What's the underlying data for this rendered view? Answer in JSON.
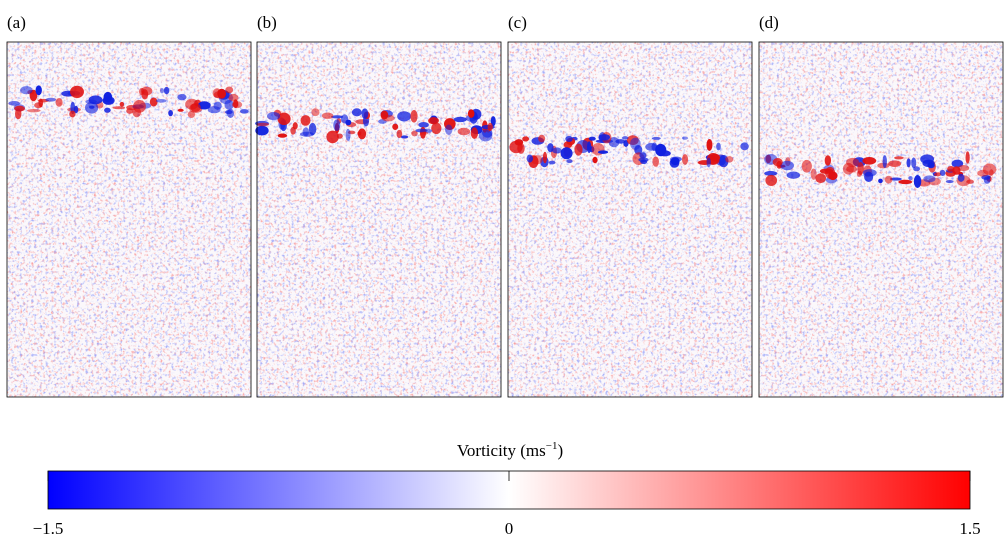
{
  "panels": [
    {
      "label": "(a)"
    },
    {
      "label": "(b)"
    },
    {
      "label": "(c)"
    },
    {
      "label": "(d)"
    }
  ],
  "colorbar": {
    "label": "Vorticity (ms",
    "label_superscript": "−1",
    "label_end": ")",
    "lim": [
      -1.5,
      1.5
    ],
    "ticks": [
      {
        "value": -1.5,
        "label": "−1.5"
      },
      0,
      1.5
    ],
    "colors": [
      "#0000ff",
      "#ffffff",
      "#ff0000"
    ]
  }
}
